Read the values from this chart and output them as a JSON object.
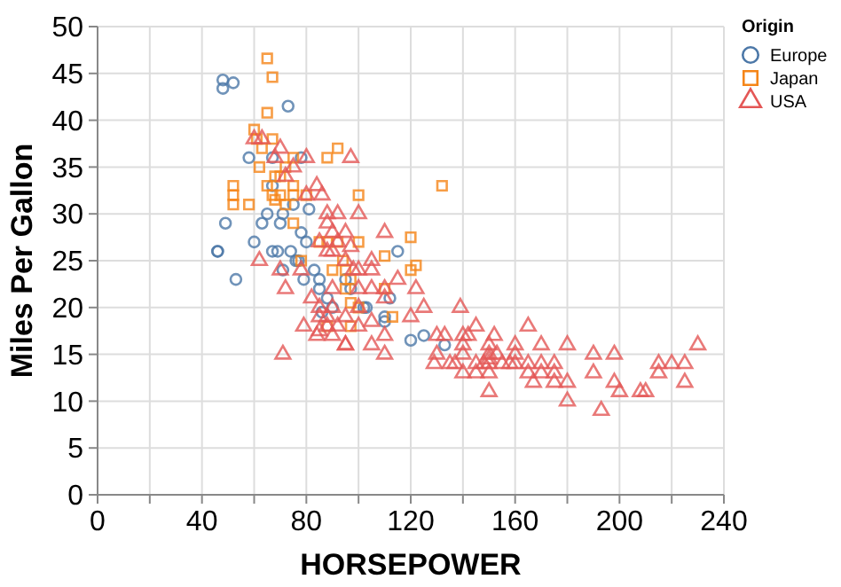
{
  "chart_data": {
    "type": "scatter",
    "xlabel": "HORSEPOWER",
    "ylabel": "Miles Per Gallon",
    "legend_title": "Origin",
    "legend": "top right",
    "grid": true,
    "xlim": [
      0,
      240
    ],
    "xticks": [
      0,
      {
        "value": 20,
        "label": null
      },
      40,
      {
        "value": 60,
        "label": null
      },
      80,
      {
        "value": 100,
        "label": null
      },
      120,
      {
        "value": 140,
        "label": null
      },
      160,
      {
        "value": 180,
        "label": null
      },
      200,
      {
        "value": 220,
        "label": null
      },
      240
    ],
    "ylim": [
      0,
      50
    ],
    "yticks": [
      0,
      5,
      10,
      15,
      20,
      25,
      30,
      35,
      40,
      45,
      50
    ],
    "series": [
      {
        "name": "Europe",
        "color": "#4c78a8",
        "marker": "circle",
        "x": [
          46,
          46,
          48,
          48,
          49,
          52,
          53,
          58,
          60,
          63,
          65,
          67,
          67,
          69,
          70,
          71,
          71,
          74,
          75,
          76,
          77,
          78,
          79,
          80,
          81,
          83,
          85,
          88,
          90,
          95,
          97,
          102,
          103,
          110,
          110,
          112,
          115,
          120,
          125,
          133,
          73,
          67,
          78,
          85,
          86
        ],
        "values": [
          26,
          26,
          43.4,
          44.3,
          29,
          44,
          23,
          36,
          27,
          29,
          30,
          26,
          36,
          26,
          29,
          24,
          30,
          26,
          31,
          25,
          25,
          28,
          23,
          27,
          30.5,
          24,
          22,
          21,
          20,
          23,
          22,
          20,
          20,
          19,
          18.5,
          21,
          26,
          16.5,
          17,
          16,
          41.5,
          33,
          36,
          23,
          19.5
        ]
      },
      {
        "name": "Japan",
        "color": "#f58518",
        "marker": "square",
        "x": [
          52,
          52,
          52,
          60,
          61,
          62,
          63,
          65,
          65,
          67,
          67,
          68,
          68,
          70,
          70,
          72,
          75,
          75,
          75,
          78,
          80,
          88,
          88,
          88,
          90,
          92,
          92,
          94,
          95,
          95,
          97,
          97,
          100,
          100,
          100,
          110,
          110,
          113,
          120,
          122,
          132,
          97,
          72,
          75,
          85,
          58,
          65,
          67,
          120
        ],
        "values": [
          33,
          32,
          31,
          39,
          38,
          35,
          37,
          46.6,
          40.8,
          44.6,
          32,
          34,
          31.5,
          34,
          32,
          31,
          32,
          36,
          33,
          25,
          32,
          36,
          27,
          18,
          24,
          37,
          27,
          25,
          24,
          22,
          23,
          20.5,
          32,
          27,
          20,
          22,
          25.5,
          19,
          27.5,
          24.5,
          33,
          18,
          35,
          29,
          27,
          31,
          33,
          38,
          24
        ]
      },
      {
        "name": "USA",
        "color": "#e45756",
        "marker": "triangle",
        "x": [
          71,
          60,
          62,
          63,
          68,
          70,
          72,
          75,
          80,
          84,
          86,
          88,
          88,
          90,
          90,
          92,
          95,
          98,
          100,
          105,
          110,
          110,
          100,
          95,
          90,
          88,
          85,
          85,
          84,
          95,
          105,
          110,
          105,
          100,
          95,
          90,
          88,
          85,
          79,
          72,
          70,
          78,
          82,
          92,
          97,
          100,
          105,
          110,
          115,
          120,
          122,
          125,
          130,
          139,
          140,
          140,
          145,
          145,
          148,
          150,
          150,
          150,
          150,
          150,
          152,
          155,
          160,
          160,
          165,
          165,
          167,
          170,
          170,
          175,
          175,
          175,
          180,
          180,
          180,
          190,
          190,
          193,
          198,
          198,
          200,
          208,
          210,
          215,
          215,
          220,
          225,
          225,
          230,
          150,
          153,
          158,
          145,
          140,
          137,
          130,
          129,
          135,
          140,
          142,
          170,
          165,
          133,
          160,
          97,
          95,
          92,
          110,
          100,
          90,
          105,
          85,
          88,
          80
        ],
        "values": [
          15,
          38,
          25,
          38,
          36,
          37,
          34,
          35,
          36,
          33,
          32,
          29,
          26,
          28,
          22,
          27,
          25,
          24,
          22,
          22,
          22,
          17,
          18,
          16,
          17,
          18,
          20,
          19,
          17,
          16,
          16,
          15,
          18.5,
          20,
          19,
          20,
          19,
          17.5,
          18,
          22,
          24,
          24,
          21,
          18,
          26.5,
          30,
          25,
          28,
          23,
          19,
          22,
          20,
          17,
          20,
          17,
          15,
          14,
          18,
          14,
          15,
          14,
          13,
          16,
          11,
          17,
          14,
          14,
          15,
          18,
          13,
          12,
          14,
          16,
          12,
          13,
          14,
          12,
          16,
          10,
          15,
          13,
          9,
          15,
          12,
          11,
          11,
          11,
          13,
          14,
          14,
          14,
          12,
          16,
          14.5,
          15,
          14,
          13,
          13,
          14,
          15,
          14,
          14,
          16,
          17,
          13,
          14,
          17,
          16,
          36,
          28,
          30,
          21,
          24,
          26,
          24,
          27,
          30,
          32
        ]
      }
    ]
  }
}
